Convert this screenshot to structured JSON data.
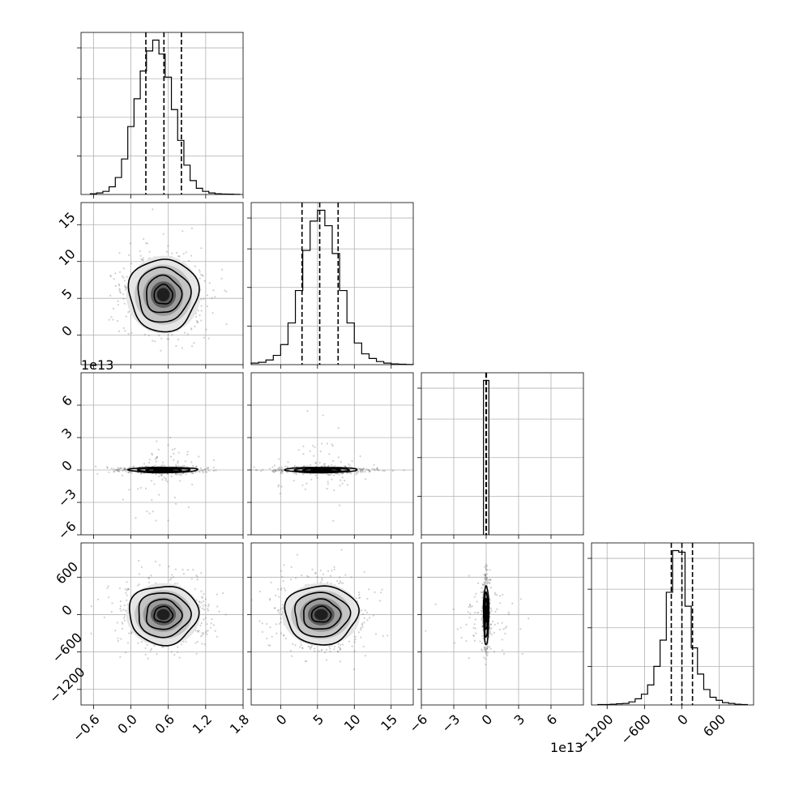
{
  "chart_data": {
    "type": "corner",
    "parameters": [
      {
        "range": [
          -0.8,
          1.8
        ],
        "ticks": [
          -0.6,
          0.0,
          0.6,
          1.2,
          1.8
        ],
        "tick_labels": [
          "−0.6",
          "0.0",
          "0.6",
          "1.2",
          "1.8"
        ],
        "offset_text": "",
        "mean": 0.52,
        "std": 0.27,
        "quantiles": [
          0.24,
          0.53,
          0.81
        ]
      },
      {
        "range": [
          -4,
          18
        ],
        "ticks": [
          0,
          5,
          10,
          15
        ],
        "tick_labels": [
          "0",
          "5",
          "10",
          "15"
        ],
        "offset_text": "",
        "mean": 5.5,
        "std": 2.4,
        "quantiles": [
          2.9,
          5.3,
          7.8
        ]
      },
      {
        "range": [
          -6,
          9
        ],
        "ticks": [
          -6,
          -3,
          0,
          3,
          6
        ],
        "tick_labels": [
          "−6",
          "−3",
          "0",
          "3",
          "6"
        ],
        "offset_text": "1e13",
        "mean": 0.0,
        "std": 0.12,
        "quantiles": [
          -0.02,
          0.0,
          0.02
        ]
      },
      {
        "range": [
          -1450,
          1150
        ],
        "ticks": [
          -1200,
          -600,
          0,
          600
        ],
        "tick_labels": [
          "−1200",
          "−600",
          "0",
          "600"
        ],
        "offset_text": "",
        "mean": 0,
        "std": 230,
        "quantiles": [
          -170,
          0,
          170
        ]
      }
    ],
    "histograms": [
      {
        "param": 0,
        "bin_edges": [
          -0.65,
          -0.55,
          -0.45,
          -0.35,
          -0.25,
          -0.15,
          -0.05,
          0.05,
          0.15,
          0.25,
          0.35,
          0.45,
          0.55,
          0.65,
          0.75,
          0.85,
          0.95,
          1.05,
          1.15,
          1.25,
          1.35,
          1.45,
          1.55,
          1.65,
          1.75
        ],
        "values": [
          0.5,
          1,
          2,
          5,
          11,
          23,
          44,
          62,
          80,
          93,
          100,
          91,
          76,
          55,
          35,
          19,
          9,
          4,
          2,
          1,
          0.5,
          0.3,
          0.2,
          0.1
        ]
      },
      {
        "param": 1,
        "bin_edges": [
          -4,
          -3,
          -2,
          -1,
          0,
          1,
          2,
          3,
          4,
          5,
          6,
          7,
          8,
          9,
          10,
          11,
          12,
          13,
          14,
          15,
          16,
          17,
          18
        ],
        "values": [
          1,
          1.5,
          3,
          6,
          13,
          27,
          48,
          74,
          93,
          100,
          90,
          72,
          48,
          27,
          14,
          7,
          4,
          2,
          1,
          0.5,
          0.3,
          0.1
        ]
      },
      {
        "param": 2,
        "bin_edges": [
          -0.25,
          0.25
        ],
        "values": [
          100
        ]
      },
      {
        "param": 3,
        "bin_edges": [
          -1350,
          -1250,
          -1150,
          -1050,
          -950,
          -850,
          -750,
          -650,
          -550,
          -450,
          -350,
          -250,
          -150,
          -50,
          50,
          150,
          250,
          350,
          450,
          550,
          650,
          750,
          850,
          950,
          1050
        ],
        "values": [
          0.3,
          0.3,
          0.5,
          0.8,
          1,
          2,
          4,
          7,
          13,
          25,
          42,
          73,
          100,
          99,
          64,
          37,
          20,
          10,
          5,
          3,
          1.5,
          1,
          0.5,
          0.3
        ]
      }
    ],
    "panels": [
      {
        "row": 0,
        "col": 0,
        "kind": "hist"
      },
      {
        "row": 1,
        "col": 0,
        "kind": "2d"
      },
      {
        "row": 1,
        "col": 1,
        "kind": "hist"
      },
      {
        "row": 2,
        "col": 0,
        "kind": "2d"
      },
      {
        "row": 2,
        "col": 1,
        "kind": "2d"
      },
      {
        "row": 2,
        "col": 2,
        "kind": "hist"
      },
      {
        "row": 3,
        "col": 0,
        "kind": "2d"
      },
      {
        "row": 3,
        "col": 1,
        "kind": "2d"
      },
      {
        "row": 3,
        "col": 2,
        "kind": "2d"
      },
      {
        "row": 3,
        "col": 3,
        "kind": "hist"
      }
    ],
    "contour_levels_sigma": [
      0.5,
      1.0,
      1.5,
      2.0
    ],
    "grid": true
  }
}
